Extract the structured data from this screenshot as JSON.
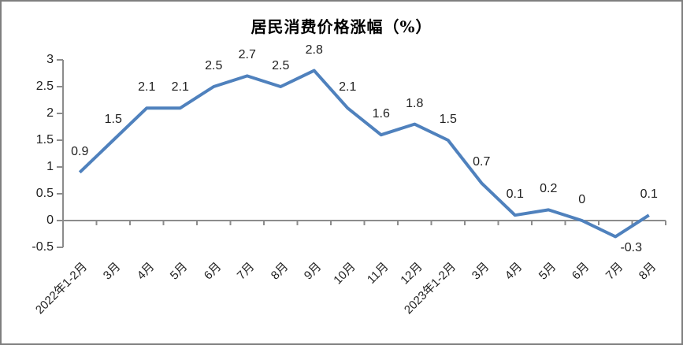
{
  "chart_data": {
    "type": "line",
    "title": "居民消费价格涨幅（%）",
    "categories": [
      "2022年1-2月",
      "3月",
      "4月",
      "5月",
      "6月",
      "7月",
      "8月",
      "9月",
      "10月",
      "11月",
      "12月",
      "2023年1-2月",
      "3月",
      "4月",
      "5月",
      "6月",
      "7月",
      "8月"
    ],
    "values": [
      0.9,
      1.5,
      2.1,
      2.1,
      2.5,
      2.7,
      2.5,
      2.8,
      2.1,
      1.6,
      1.8,
      1.5,
      0.7,
      0.1,
      0.2,
      0,
      -0.3,
      0.1
    ],
    "data_labels": [
      "0.9",
      "1.5",
      "2.1",
      "2.1",
      "2.5",
      "2.7",
      "2.5",
      "2.8",
      "2.1",
      "1.6",
      "1.8",
      "1.5",
      "0.7",
      "0.1",
      "0.2",
      "0",
      "-0.3",
      "0.1"
    ],
    "y_ticks": [
      3,
      2.5,
      2,
      1.5,
      1,
      0.5,
      0,
      -0.5
    ],
    "ylim": [
      -0.5,
      3
    ],
    "xlabel": "",
    "ylabel": "",
    "grid": false,
    "legend": "none",
    "colors": {
      "series": "#4F81BD",
      "axis": "#8C8C8C",
      "labels": "#1f1f1f",
      "title": "#000000",
      "frame_border": "#7f7f7f",
      "background": "#ffffff"
    }
  }
}
